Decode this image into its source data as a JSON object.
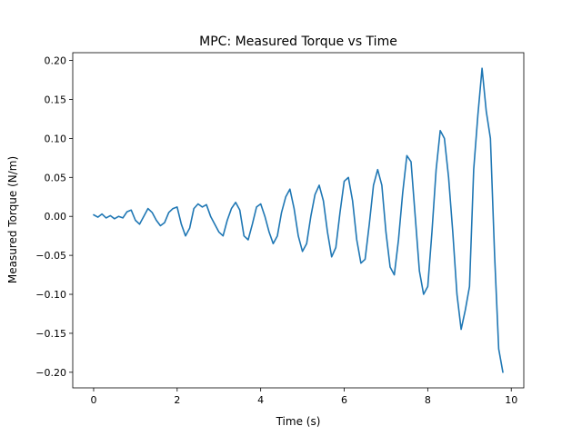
{
  "chart_data": {
    "type": "line",
    "title": "MPC: Measured Torque vs Time",
    "xlabel": "Time (s)",
    "ylabel": "Measured Torque (N/m)",
    "xlim": [
      -0.5,
      10.3
    ],
    "ylim": [
      -0.22,
      0.21
    ],
    "xticks": [
      0,
      2,
      4,
      6,
      8,
      10
    ],
    "xtick_labels": [
      "0",
      "2",
      "4",
      "6",
      "8",
      "10"
    ],
    "yticks": [
      -0.2,
      -0.15,
      -0.1,
      -0.05,
      0.0,
      0.05,
      0.1,
      0.15,
      0.2
    ],
    "ytick_labels": [
      "−0.20",
      "−0.15",
      "−0.10",
      "−0.05",
      "0.00",
      "0.05",
      "0.10",
      "0.15",
      "0.20"
    ],
    "grid": false,
    "series": [
      {
        "color": "#1f77b4",
        "x": [
          0.0,
          0.1,
          0.2,
          0.3,
          0.4,
          0.5,
          0.6,
          0.7,
          0.8,
          0.9,
          1.0,
          1.1,
          1.2,
          1.3,
          1.4,
          1.5,
          1.6,
          1.7,
          1.8,
          1.9,
          2.0,
          2.1,
          2.2,
          2.3,
          2.4,
          2.5,
          2.6,
          2.7,
          2.8,
          2.9,
          3.0,
          3.1,
          3.2,
          3.3,
          3.4,
          3.5,
          3.6,
          3.7,
          3.8,
          3.9,
          4.0,
          4.1,
          4.2,
          4.3,
          4.4,
          4.5,
          4.6,
          4.7,
          4.8,
          4.9,
          5.0,
          5.1,
          5.2,
          5.3,
          5.4,
          5.5,
          5.6,
          5.7,
          5.8,
          5.9,
          6.0,
          6.1,
          6.2,
          6.3,
          6.4,
          6.5,
          6.6,
          6.7,
          6.8,
          6.9,
          7.0,
          7.1,
          7.2,
          7.3,
          7.4,
          7.5,
          7.6,
          7.7,
          7.8,
          7.9,
          8.0,
          8.1,
          8.2,
          8.3,
          8.4,
          8.5,
          8.6,
          8.7,
          8.8,
          8.9,
          9.0,
          9.1,
          9.2,
          9.3,
          9.4,
          9.5,
          9.6,
          9.7,
          9.8
        ],
        "y": [
          0.002,
          -0.001,
          0.003,
          -0.002,
          0.001,
          -0.003,
          0.0,
          -0.002,
          0.006,
          0.008,
          -0.005,
          -0.01,
          0.0,
          0.01,
          0.005,
          -0.005,
          -0.012,
          -0.008,
          0.005,
          0.01,
          0.012,
          -0.01,
          -0.025,
          -0.015,
          0.01,
          0.016,
          0.012,
          0.015,
          0.0,
          -0.01,
          -0.02,
          -0.025,
          -0.005,
          0.01,
          0.018,
          0.008,
          -0.025,
          -0.03,
          -0.01,
          0.012,
          0.016,
          0.0,
          -0.02,
          -0.035,
          -0.025,
          0.005,
          0.025,
          0.035,
          0.01,
          -0.025,
          -0.045,
          -0.035,
          0.0,
          0.028,
          0.04,
          0.02,
          -0.02,
          -0.052,
          -0.04,
          0.005,
          0.045,
          0.05,
          0.02,
          -0.03,
          -0.06,
          -0.055,
          -0.01,
          0.04,
          0.06,
          0.04,
          -0.02,
          -0.065,
          -0.075,
          -0.03,
          0.03,
          0.078,
          0.07,
          0.0,
          -0.07,
          -0.1,
          -0.09,
          -0.02,
          0.06,
          0.11,
          0.1,
          0.05,
          -0.02,
          -0.1,
          -0.145,
          -0.12,
          -0.09,
          0.06,
          0.13,
          0.19,
          0.135,
          0.1,
          -0.05,
          -0.17,
          -0.2
        ]
      }
    ]
  }
}
